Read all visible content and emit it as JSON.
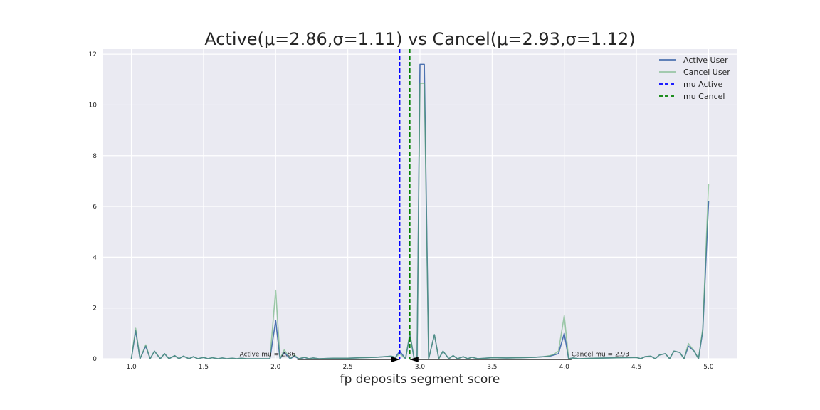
{
  "chart_data": {
    "type": "line",
    "title": "Active(μ=2.86,σ=1.11) vs Cancel(μ=2.93,σ=1.12)",
    "xlabel": "fp deposits segment score",
    "ylabel": "",
    "xlim": [
      0.8,
      5.2
    ],
    "ylim": [
      0,
      12.2
    ],
    "x_ticks": [
      1.0,
      1.5,
      2.0,
      2.5,
      3.0,
      3.5,
      4.0,
      4.5,
      5.0
    ],
    "x_tick_labels": [
      "1.0",
      "1.5",
      "2.0",
      "2.5",
      "3.0",
      "3.5",
      "4.0",
      "4.5",
      "5.0"
    ],
    "y_ticks": [
      0,
      2,
      4,
      6,
      8,
      10,
      12
    ],
    "y_tick_labels": [
      "0",
      "2",
      "4",
      "6",
      "8",
      "10",
      "12"
    ],
    "grid": true,
    "legend_position": "top-right",
    "series": [
      {
        "name": "Active User",
        "color": "#4c72b0",
        "x": [
          1.0,
          1.03,
          1.06,
          1.1,
          1.13,
          1.16,
          1.2,
          1.23,
          1.26,
          1.3,
          1.33,
          1.36,
          1.4,
          1.43,
          1.46,
          1.5,
          1.53,
          1.56,
          1.6,
          1.63,
          1.66,
          1.7,
          1.73,
          1.76,
          1.8,
          1.9,
          1.96,
          2.0,
          2.03,
          2.06,
          2.1,
          2.13,
          2.16,
          2.2,
          2.23,
          2.26,
          2.3,
          2.4,
          2.5,
          2.6,
          2.7,
          2.76,
          2.8,
          2.83,
          2.86,
          2.9,
          2.93,
          2.96,
          2.98,
          3.0,
          3.03,
          3.06,
          3.1,
          3.13,
          3.16,
          3.2,
          3.23,
          3.26,
          3.3,
          3.33,
          3.36,
          3.4,
          3.5,
          3.6,
          3.7,
          3.8,
          3.86,
          3.9,
          3.93,
          3.96,
          4.0,
          4.03,
          4.06,
          4.1,
          4.2,
          4.3,
          4.4,
          4.5,
          4.53,
          4.56,
          4.6,
          4.63,
          4.66,
          4.7,
          4.73,
          4.76,
          4.8,
          4.83,
          4.86,
          4.9,
          4.93,
          4.96,
          5.0
        ],
        "values": [
          0,
          1.1,
          0,
          0.5,
          0,
          0.3,
          0,
          0.2,
          0,
          0.12,
          0,
          0.1,
          0,
          0.08,
          0,
          0.05,
          0,
          0.04,
          0,
          0.03,
          0,
          0.02,
          0,
          0.02,
          0,
          0,
          0,
          1.5,
          0,
          0.25,
          0,
          0.1,
          0,
          0.05,
          0,
          0.03,
          0,
          0.02,
          0.02,
          0.04,
          0.06,
          0.08,
          0.1,
          0.05,
          0.3,
          0,
          0.95,
          0,
          0,
          11.6,
          11.6,
          0,
          0.95,
          0,
          0.3,
          0,
          0.12,
          0,
          0.08,
          0,
          0.06,
          0,
          0.04,
          0.03,
          0.04,
          0.06,
          0.08,
          0.1,
          0.15,
          0.2,
          1.0,
          0,
          0.03,
          0,
          0.02,
          0.03,
          0.04,
          0.05,
          0,
          0.08,
          0.1,
          0,
          0.15,
          0.2,
          0,
          0.3,
          0.25,
          0,
          0.5,
          0.3,
          0,
          1.1,
          6.2
        ]
      },
      {
        "name": "Cancel User",
        "color": "#55a868",
        "x": [
          1.0,
          1.03,
          1.06,
          1.1,
          1.13,
          1.16,
          1.2,
          1.23,
          1.26,
          1.3,
          1.33,
          1.36,
          1.4,
          1.43,
          1.46,
          1.5,
          1.53,
          1.56,
          1.6,
          1.63,
          1.66,
          1.7,
          1.73,
          1.76,
          1.8,
          1.9,
          1.96,
          2.0,
          2.03,
          2.06,
          2.1,
          2.13,
          2.16,
          2.2,
          2.23,
          2.26,
          2.3,
          2.4,
          2.5,
          2.6,
          2.7,
          2.76,
          2.8,
          2.83,
          2.86,
          2.9,
          2.93,
          2.96,
          2.98,
          3.0,
          3.03,
          3.06,
          3.1,
          3.13,
          3.16,
          3.2,
          3.23,
          3.26,
          3.3,
          3.33,
          3.36,
          3.4,
          3.5,
          3.6,
          3.7,
          3.8,
          3.86,
          3.9,
          3.93,
          3.96,
          4.0,
          4.03,
          4.06,
          4.1,
          4.2,
          4.3,
          4.4,
          4.5,
          4.53,
          4.56,
          4.6,
          4.63,
          4.66,
          4.7,
          4.73,
          4.76,
          4.8,
          4.83,
          4.86,
          4.9,
          4.93,
          4.96,
          5.0
        ],
        "values": [
          0,
          1.2,
          0,
          0.55,
          0,
          0.3,
          0,
          0.2,
          0,
          0.12,
          0,
          0.1,
          0,
          0.08,
          0,
          0.05,
          0,
          0.04,
          0,
          0.03,
          0,
          0.02,
          0,
          0.02,
          0,
          0,
          0,
          2.7,
          0,
          0.35,
          0,
          0.15,
          0,
          0.06,
          0,
          0.03,
          0,
          0.02,
          0.02,
          0.04,
          0.06,
          0.08,
          0.1,
          0.05,
          0.2,
          0,
          1.0,
          0,
          0,
          10.85,
          10.85,
          0,
          0.95,
          0,
          0.3,
          0,
          0.12,
          0,
          0.08,
          0,
          0.06,
          0,
          0.04,
          0.03,
          0.04,
          0.06,
          0.08,
          0.12,
          0.18,
          0.3,
          1.7,
          0,
          0.03,
          0,
          0.02,
          0.03,
          0.04,
          0.05,
          0,
          0.08,
          0.1,
          0,
          0.15,
          0.2,
          0,
          0.3,
          0.25,
          0,
          0.6,
          0.3,
          0,
          1.2,
          6.9
        ]
      }
    ],
    "vlines": [
      {
        "name": "mu Active",
        "x": 2.86,
        "color": "#0000ff",
        "style": "dashed"
      },
      {
        "name": "mu Cancel",
        "x": 2.93,
        "color": "#008000",
        "style": "dashed"
      }
    ],
    "annotations": [
      {
        "text": "Active mu = 2.86",
        "text_x": 1.75,
        "text_y": 0.1,
        "arrow_to_x": 2.86,
        "arrow_to_y": 0
      },
      {
        "text": "Cancel mu = 2.93",
        "text_x": 4.05,
        "text_y": 0.1,
        "arrow_to_x": 2.93,
        "arrow_to_y": 0
      }
    ]
  }
}
